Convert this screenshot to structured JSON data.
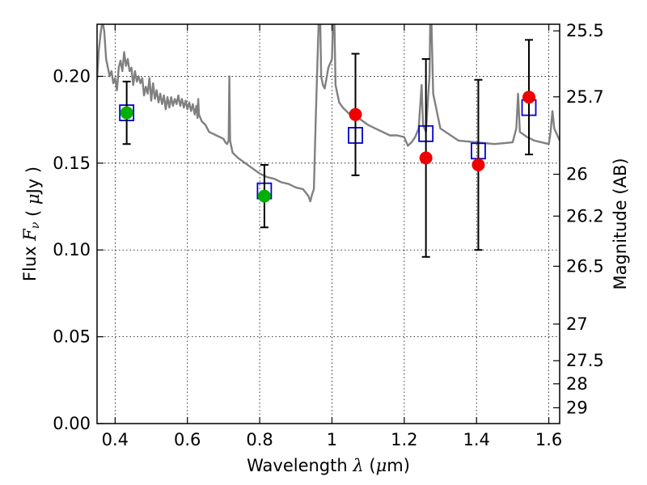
{
  "chart_data": {
    "type": "scatter",
    "title": "",
    "xlabel": "Wavelength",
    "xlabel_symbol": "λ",
    "xlabel_unit_prefix": "(",
    "xlabel_unit_mu": "μ",
    "xlabel_unit_suffix": "m)",
    "ylabel": "Flux",
    "ylabel_symbol_f": "F",
    "ylabel_symbol_nu": "ν",
    "ylabel_unit_prefix": "(",
    "ylabel_unit_mu": "μ",
    "ylabel_unit_suffix": "Jy )",
    "ylabel_right": "Magnitude (AB)",
    "xlim": [
      0.35,
      1.63
    ],
    "ylim": [
      0.0,
      0.23
    ],
    "grid": true,
    "grid_style": "dotted",
    "x_ticks": [
      {
        "value": 0.4,
        "label": "0.4"
      },
      {
        "value": 0.6,
        "label": "0.6"
      },
      {
        "value": 0.8,
        "label": "0.8"
      },
      {
        "value": 1.0,
        "label": "1"
      },
      {
        "value": 1.2,
        "label": "1.2"
      },
      {
        "value": 1.4,
        "label": "1.4"
      },
      {
        "value": 1.6,
        "label": "1.6"
      }
    ],
    "y_ticks": [
      {
        "value": 0.0,
        "label": "0.00"
      },
      {
        "value": 0.05,
        "label": "0.05"
      },
      {
        "value": 0.1,
        "label": "0.10"
      },
      {
        "value": 0.15,
        "label": "0.15"
      },
      {
        "value": 0.2,
        "label": "0.20"
      }
    ],
    "right_ticks": [
      {
        "flux": 0.2262,
        "label": "25.5"
      },
      {
        "flux": 0.1882,
        "label": "25.7"
      },
      {
        "flux": 0.1436,
        "label": "26"
      },
      {
        "flux": 0.1195,
        "label": "26.2"
      },
      {
        "flux": 0.0906,
        "label": "26.5"
      },
      {
        "flux": 0.0573,
        "label": "27"
      },
      {
        "flux": 0.0362,
        "label": "27.5"
      },
      {
        "flux": 0.0229,
        "label": "28"
      },
      {
        "flux": 0.0091,
        "label": "29"
      }
    ],
    "colors": {
      "template": "#808080",
      "model_marker": "#0000cc",
      "optical": "#00b000",
      "infrared": "#ee0000",
      "errorbar": "#000000"
    },
    "template_spectrum": [
      [
        0.35,
        0.198
      ],
      [
        0.355,
        0.215
      ],
      [
        0.36,
        0.225
      ],
      [
        0.365,
        0.232
      ],
      [
        0.37,
        0.226
      ],
      [
        0.375,
        0.21
      ],
      [
        0.38,
        0.205
      ],
      [
        0.385,
        0.2
      ],
      [
        0.39,
        0.203
      ],
      [
        0.395,
        0.196
      ],
      [
        0.4,
        0.199
      ],
      [
        0.405,
        0.192
      ],
      [
        0.41,
        0.205
      ],
      [
        0.415,
        0.209
      ],
      [
        0.42,
        0.203
      ],
      [
        0.425,
        0.214
      ],
      [
        0.43,
        0.206
      ],
      [
        0.435,
        0.21
      ],
      [
        0.44,
        0.203
      ],
      [
        0.445,
        0.205
      ],
      [
        0.45,
        0.195
      ],
      [
        0.455,
        0.203
      ],
      [
        0.46,
        0.197
      ],
      [
        0.465,
        0.2
      ],
      [
        0.47,
        0.196
      ],
      [
        0.475,
        0.199
      ],
      [
        0.48,
        0.189
      ],
      [
        0.485,
        0.194
      ],
      [
        0.49,
        0.19
      ],
      [
        0.495,
        0.199
      ],
      [
        0.5,
        0.186
      ],
      [
        0.505,
        0.196
      ],
      [
        0.51,
        0.187
      ],
      [
        0.515,
        0.192
      ],
      [
        0.52,
        0.185
      ],
      [
        0.525,
        0.19
      ],
      [
        0.53,
        0.184
      ],
      [
        0.535,
        0.189
      ],
      [
        0.54,
        0.181
      ],
      [
        0.545,
        0.188
      ],
      [
        0.55,
        0.182
      ],
      [
        0.555,
        0.188
      ],
      [
        0.56,
        0.183
      ],
      [
        0.565,
        0.187
      ],
      [
        0.57,
        0.184
      ],
      [
        0.575,
        0.189
      ],
      [
        0.58,
        0.183
      ],
      [
        0.585,
        0.187
      ],
      [
        0.59,
        0.182
      ],
      [
        0.595,
        0.186
      ],
      [
        0.6,
        0.181
      ],
      [
        0.605,
        0.185
      ],
      [
        0.61,
        0.18
      ],
      [
        0.615,
        0.184
      ],
      [
        0.62,
        0.178
      ],
      [
        0.625,
        0.183
      ],
      [
        0.628,
        0.176
      ],
      [
        0.63,
        0.187
      ],
      [
        0.632,
        0.178
      ],
      [
        0.64,
        0.174
      ],
      [
        0.65,
        0.172
      ],
      [
        0.66,
        0.168
      ],
      [
        0.67,
        0.167
      ],
      [
        0.68,
        0.166
      ],
      [
        0.69,
        0.165
      ],
      [
        0.7,
        0.164
      ],
      [
        0.705,
        0.162
      ],
      [
        0.71,
        0.161
      ],
      [
        0.714,
        0.163
      ],
      [
        0.716,
        0.2
      ],
      [
        0.718,
        0.163
      ],
      [
        0.725,
        0.156
      ],
      [
        0.74,
        0.153
      ],
      [
        0.76,
        0.15
      ],
      [
        0.78,
        0.147
      ],
      [
        0.8,
        0.144
      ],
      [
        0.82,
        0.142
      ],
      [
        0.84,
        0.141
      ],
      [
        0.86,
        0.139
      ],
      [
        0.88,
        0.138
      ],
      [
        0.9,
        0.136
      ],
      [
        0.92,
        0.135
      ],
      [
        0.935,
        0.131
      ],
      [
        0.94,
        0.128
      ],
      [
        0.945,
        0.132
      ],
      [
        0.95,
        0.135
      ],
      [
        0.955,
        0.175
      ],
      [
        0.96,
        0.21
      ],
      [
        0.966,
        0.25
      ],
      [
        0.97,
        0.2
      ],
      [
        0.975,
        0.195
      ],
      [
        0.98,
        0.193
      ],
      [
        0.99,
        0.205
      ],
      [
        1.0,
        0.21
      ],
      [
        1.005,
        0.25
      ],
      [
        1.01,
        0.195
      ],
      [
        1.02,
        0.185
      ],
      [
        1.03,
        0.182
      ],
      [
        1.05,
        0.178
      ],
      [
        1.07,
        0.177
      ],
      [
        1.08,
        0.175
      ],
      [
        1.1,
        0.172
      ],
      [
        1.12,
        0.17
      ],
      [
        1.14,
        0.168
      ],
      [
        1.16,
        0.166
      ],
      [
        1.18,
        0.166
      ],
      [
        1.2,
        0.165
      ],
      [
        1.21,
        0.16
      ],
      [
        1.22,
        0.162
      ],
      [
        1.23,
        0.165
      ],
      [
        1.24,
        0.17
      ],
      [
        1.248,
        0.195
      ],
      [
        1.252,
        0.172
      ],
      [
        1.26,
        0.168
      ],
      [
        1.265,
        0.185
      ],
      [
        1.27,
        0.2
      ],
      [
        1.273,
        0.25
      ],
      [
        1.28,
        0.19
      ],
      [
        1.3,
        0.17
      ],
      [
        1.35,
        0.163
      ],
      [
        1.4,
        0.162
      ],
      [
        1.45,
        0.161
      ],
      [
        1.5,
        0.162
      ],
      [
        1.51,
        0.17
      ],
      [
        1.515,
        0.19
      ],
      [
        1.52,
        0.168
      ],
      [
        1.54,
        0.165
      ],
      [
        1.56,
        0.163
      ],
      [
        1.58,
        0.162
      ],
      [
        1.6,
        0.161
      ],
      [
        1.605,
        0.168
      ],
      [
        1.61,
        0.18
      ],
      [
        1.615,
        0.17
      ],
      [
        1.63,
        0.163
      ]
    ],
    "series": [
      {
        "marker": "open-square",
        "color": "#0000cc",
        "x": [
          0.432,
          0.813,
          1.065,
          1.26,
          1.405,
          1.545
        ],
        "y": [
          0.179,
          0.134,
          0.166,
          0.167,
          0.157,
          0.182
        ]
      },
      {
        "marker": "filled-circle",
        "color": "#00b000",
        "x": [
          0.432,
          0.813
        ],
        "y": [
          0.179,
          0.131
        ],
        "err": [
          0.018,
          0.018
        ]
      },
      {
        "marker": "filled-circle",
        "color": "#ee0000",
        "x": [
          1.065,
          1.26,
          1.405,
          1.545
        ],
        "y": [
          0.178,
          0.153,
          0.149,
          0.188
        ],
        "err": [
          0.035,
          0.057,
          0.049,
          0.033
        ]
      }
    ]
  }
}
